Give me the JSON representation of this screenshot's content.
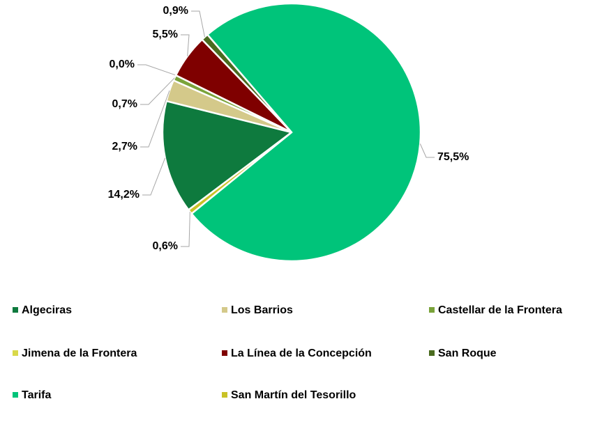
{
  "chart_data": {
    "type": "pie",
    "categories": [
      "Algeciras",
      "Los Barrios",
      "Castellar de la Frontera",
      "Jimena de la Frontera",
      "La Línea de la Concepción",
      "San Roque",
      "Tarifa",
      "San Martín del Tesorillo"
    ],
    "values": [
      14.2,
      2.7,
      0.7,
      0.0,
      5.5,
      0.9,
      75.5,
      0.6
    ],
    "value_labels": [
      "14,2%",
      "2,7%",
      "0,7%",
      "0,0%",
      "5,5%",
      "0,9%",
      "75,5%",
      "0,6%"
    ],
    "colors": [
      "#0e7a3e",
      "#d4c98a",
      "#7aa33a",
      "#d9d94a",
      "#7f0000",
      "#4a6b1f",
      "#00c47a",
      "#c9c227"
    ],
    "legend": "bottom"
  }
}
